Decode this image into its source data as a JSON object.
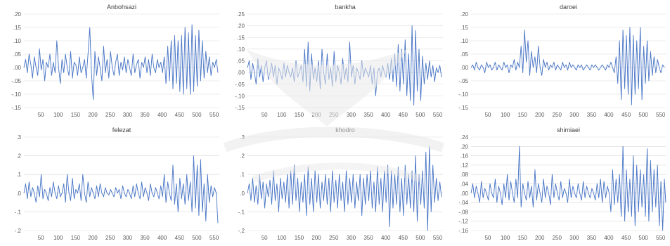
{
  "colors": {
    "series": "#4472C4",
    "grid": "#d9d9d9",
    "tick_text": "#595959",
    "title_text": "#404040"
  },
  "chart_data": [
    {
      "type": "line",
      "title": "Anbohsazi",
      "xlabel": "",
      "ylabel": "",
      "xlim": [
        1,
        565
      ],
      "ylim": [
        -0.15,
        0.2
      ],
      "xticks": [
        50,
        100,
        150,
        200,
        250,
        300,
        350,
        400,
        450,
        500,
        550
      ],
      "xtick_labels": [
        "50",
        "100",
        "150",
        "200",
        "250",
        "300",
        "350",
        "400",
        "450",
        "500",
        "550"
      ],
      "yticks": [
        -0.15,
        -0.1,
        -0.05,
        0,
        0.05,
        0.1,
        0.15,
        0.2
      ],
      "ytick_labels": [
        "-.15",
        "-.10",
        "-.05",
        ".00",
        ".05",
        ".10",
        ".15",
        ".20"
      ],
      "grid": "horizontal",
      "series": [
        {
          "x_start": 1,
          "x_step": 5,
          "values": [
            0.0,
            0.03,
            -0.02,
            0.05,
            0.01,
            -0.04,
            0.04,
            0.0,
            -0.03,
            0.07,
            -0.01,
            0.03,
            -0.05,
            0.02,
            0.0,
            0.05,
            -0.03,
            0.02,
            -0.02,
            0.1,
            0.0,
            -0.06,
            0.03,
            -0.02,
            0.05,
            0.0,
            -0.03,
            0.06,
            -0.04,
            0.02,
            0.01,
            -0.03,
            0.04,
            -0.02,
            0.0,
            0.03,
            -0.04,
            0.05,
            0.15,
            -0.02,
            -0.12,
            0.06,
            -0.03,
            0.04,
            0.0,
            -0.05,
            0.08,
            -0.02,
            0.03,
            -0.04,
            0.06,
            0.0,
            -0.03,
            0.02,
            0.05,
            -0.03,
            0.02,
            -0.01,
            0.04,
            -0.02,
            0.03,
            0.0,
            -0.03,
            0.05,
            -0.02,
            0.01,
            0.03,
            -0.04,
            0.02,
            0.0,
            0.04,
            -0.02,
            0.03,
            -0.03,
            0.05,
            0.0,
            -0.02,
            0.03,
            0.0,
            0.02,
            -0.02,
            0.04,
            -0.06,
            0.08,
            -0.05,
            0.1,
            -0.08,
            0.12,
            -0.06,
            0.1,
            -0.09,
            0.12,
            -0.1,
            0.15,
            -0.08,
            0.13,
            -0.1,
            0.16,
            -0.09,
            0.12,
            -0.07,
            0.14,
            -0.05,
            0.1,
            -0.04,
            0.06,
            -0.02,
            0.04,
            -0.03,
            0.02,
            0.0,
            0.03,
            -0.02
          ]
        }
      ]
    },
    {
      "type": "line",
      "title": "bankha",
      "xlabel": "",
      "ylabel": "",
      "xlim": [
        1,
        565
      ],
      "ylim": [
        -0.15,
        0.25
      ],
      "xticks": [
        50,
        100,
        150,
        200,
        250,
        300,
        350,
        400,
        450,
        500,
        550
      ],
      "xtick_labels": [
        "50",
        "100",
        "150",
        "200",
        "250",
        "300",
        "350",
        "400",
        "450",
        "500",
        "550"
      ],
      "yticks": [
        -0.15,
        -0.1,
        -0.05,
        0,
        0.05,
        0.1,
        0.15,
        0.2,
        0.25
      ],
      "ytick_labels": [
        "-.15",
        "-.10",
        "-.05",
        ".00",
        ".05",
        ".10",
        ".15",
        ".20",
        ".25"
      ],
      "grid": "horizontal",
      "series": [
        {
          "x_start": 1,
          "x_step": 5,
          "values": [
            0.02,
            0.05,
            -0.03,
            0.04,
            0.0,
            -0.05,
            0.06,
            -0.02,
            0.03,
            -0.04,
            0.02,
            0.05,
            -0.03,
            0.0,
            0.04,
            -0.02,
            0.03,
            -0.05,
            0.02,
            0.0,
            -0.03,
            0.04,
            -0.02,
            0.03,
            0.0,
            -0.02,
            0.02,
            -0.04,
            0.05,
            -0.02,
            0.0,
            0.03,
            -0.04,
            0.1,
            -0.06,
            0.13,
            -0.08,
            0.08,
            -0.03,
            0.02,
            -0.04,
            0.05,
            -0.07,
            0.1,
            0.0,
            -0.05,
            0.08,
            -0.03,
            0.02,
            -0.06,
            0.09,
            -0.04,
            0.03,
            0.0,
            -0.05,
            0.06,
            -0.03,
            0.02,
            -0.04,
            0.13,
            -0.02,
            0.03,
            -0.05,
            0.02,
            0.0,
            -0.03,
            0.05,
            -0.02,
            0.02,
            0.0,
            -0.02,
            0.03,
            -0.05,
            0.02,
            -0.1,
            0.0,
            0.02,
            -0.02,
            0.03,
            0.0,
            -0.02,
            0.04,
            -0.03,
            0.06,
            -0.04,
            0.08,
            -0.06,
            0.12,
            -0.08,
            0.1,
            -0.05,
            0.14,
            -0.1,
            0.08,
            -0.12,
            0.2,
            -0.14,
            0.18,
            -0.08,
            0.1,
            -0.12,
            0.07,
            -0.05,
            0.04,
            -0.03,
            0.05,
            -0.02,
            0.03,
            -0.04,
            0.02,
            0.0,
            0.03,
            -0.02
          ]
        }
      ]
    },
    {
      "type": "line",
      "title": "daroei",
      "xlabel": "",
      "ylabel": "",
      "xlim": [
        1,
        565
      ],
      "ylim": [
        -0.15,
        0.2
      ],
      "xticks": [
        50,
        100,
        150,
        200,
        250,
        300,
        350,
        400,
        450,
        500,
        550
      ],
      "xtick_labels": [
        "50",
        "100",
        "150",
        "200",
        "250",
        "300",
        "350",
        "400",
        "450",
        "500",
        "550"
      ],
      "yticks": [
        -0.15,
        -0.1,
        -0.05,
        0,
        0.05,
        0.1,
        0.15,
        0.2
      ],
      "ytick_labels": [
        "-.15",
        "-.10",
        "-.05",
        ".00",
        ".05",
        ".10",
        ".15",
        ".20"
      ],
      "grid": "horizontal",
      "series": [
        {
          "x_start": 1,
          "x_step": 5,
          "values": [
            0.0,
            0.01,
            -0.01,
            0.02,
            0.0,
            -0.01,
            0.01,
            0.0,
            -0.02,
            0.02,
            0.0,
            0.01,
            -0.01,
            0.0,
            0.02,
            -0.01,
            0.01,
            0.0,
            -0.01,
            0.02,
            0.0,
            0.01,
            -0.02,
            0.01,
            0.0,
            0.03,
            -0.01,
            0.02,
            0.0,
            0.08,
            -0.02,
            0.14,
            0.02,
            0.1,
            -0.03,
            0.06,
            0.0,
            0.04,
            -0.02,
            0.08,
            0.0,
            -0.03,
            0.03,
            0.0,
            0.02,
            -0.01,
            0.01,
            0.0,
            0.02,
            -0.01,
            0.01,
            0.0,
            -0.01,
            0.02,
            0.0,
            0.01,
            -0.01,
            0.02,
            0.0,
            0.01,
            0.0,
            -0.01,
            0.01,
            0.0,
            0.01,
            -0.01,
            0.0,
            0.01,
            0.0,
            -0.01,
            0.01,
            0.0,
            0.01,
            0.0,
            -0.01,
            0.0,
            0.01,
            0.0,
            -0.01,
            0.01,
            0.0,
            0.02,
            0.0,
            -0.02,
            0.04,
            -0.06,
            0.1,
            -0.12,
            0.14,
            -0.08,
            0.12,
            -0.1,
            0.15,
            -0.14,
            0.12,
            -0.1,
            0.1,
            -0.08,
            0.15,
            -0.12,
            0.08,
            -0.06,
            0.1,
            -0.05,
            0.06,
            -0.03,
            0.04,
            -0.02,
            0.03,
            0.0,
            -0.02,
            0.01,
            0.0
          ]
        }
      ]
    },
    {
      "type": "line",
      "title": "felezat",
      "xlabel": "",
      "ylabel": "",
      "xlim": [
        1,
        565
      ],
      "ylim": [
        -0.2,
        0.3
      ],
      "xticks": [
        50,
        100,
        150,
        200,
        250,
        300,
        350,
        400,
        450,
        500,
        550
      ],
      "xtick_labels": [
        "50",
        "100",
        "150",
        "200",
        "250",
        "300",
        "350",
        "400",
        "450",
        "500",
        "550"
      ],
      "yticks": [
        -0.2,
        -0.1,
        0,
        0.1,
        0.2,
        0.3
      ],
      "ytick_labels": [
        "-.2",
        "-.1",
        ".0",
        ".1",
        ".2",
        ".3"
      ],
      "grid": "horizontal",
      "series": [
        {
          "x_start": 1,
          "x_step": 5,
          "values": [
            0.0,
            0.05,
            -0.03,
            0.06,
            -0.02,
            0.03,
            0.0,
            -0.05,
            0.04,
            -0.02,
            0.1,
            -0.03,
            0.02,
            0.0,
            -0.04,
            0.03,
            -0.02,
            0.06,
            0.0,
            -0.03,
            0.04,
            -0.02,
            0.0,
            0.05,
            -0.05,
            0.1,
            0.0,
            -0.04,
            0.08,
            -0.03,
            0.02,
            0.0,
            0.05,
            -0.04,
            0.1,
            0.0,
            -0.05,
            0.06,
            -0.02,
            0.03,
            0.0,
            -0.03,
            0.04,
            -0.02,
            0.05,
            0.0,
            -0.02,
            0.03,
            0.0,
            -0.01,
            0.02,
            0.0,
            -0.02,
            0.03,
            0.0,
            0.02,
            -0.03,
            0.04,
            0.0,
            -0.02,
            0.02,
            0.0,
            -0.03,
            0.04,
            -0.02,
            0.05,
            0.0,
            -0.03,
            0.06,
            -0.02,
            0.03,
            0.0,
            -0.04,
            0.05,
            0.0,
            -0.02,
            0.03,
            0.0,
            -0.03,
            0.04,
            -0.02,
            0.1,
            -0.05,
            0.06,
            0.0,
            -0.04,
            0.15,
            -0.06,
            0.05,
            -0.1,
            0.08,
            -0.03,
            0.05,
            -0.06,
            0.1,
            -0.04,
            0.06,
            -0.1,
            0.2,
            -0.08,
            0.15,
            -0.12,
            0.18,
            -0.1,
            0.05,
            -0.15,
            0.1,
            -0.05,
            0.04,
            -0.02,
            0.03,
            0.0,
            -0.16
          ]
        }
      ]
    },
    {
      "type": "line",
      "title": "khodro",
      "xlabel": "",
      "ylabel": "",
      "xlim": [
        1,
        565
      ],
      "ylim": [
        -0.2,
        0.3
      ],
      "xticks": [
        50,
        100,
        150,
        200,
        250,
        300,
        350,
        400,
        450,
        500,
        550
      ],
      "xtick_labels": [
        "50",
        "100",
        "150",
        "200",
        "250",
        "300",
        "350",
        "400",
        "450",
        "500",
        "550"
      ],
      "yticks": [
        -0.2,
        -0.1,
        0,
        0.1,
        0.2,
        0.3
      ],
      "ytick_labels": [
        "-.2",
        "-.1",
        ".0",
        ".1",
        ".2",
        ".3"
      ],
      "grid": "horizontal",
      "series": [
        {
          "x_start": 1,
          "x_step": 5,
          "values": [
            0.0,
            0.05,
            -0.04,
            0.08,
            -0.05,
            0.04,
            -0.06,
            0.1,
            -0.03,
            0.06,
            -0.08,
            0.05,
            -0.02,
            0.07,
            -0.06,
            0.12,
            -0.04,
            0.05,
            -0.1,
            0.08,
            -0.03,
            0.06,
            -0.05,
            0.1,
            -0.08,
            0.12,
            -0.06,
            0.15,
            -0.04,
            0.08,
            -0.1,
            0.06,
            -0.05,
            0.1,
            -0.12,
            0.14,
            -0.06,
            0.08,
            -0.1,
            0.12,
            -0.05,
            0.1,
            -0.08,
            0.06,
            -0.04,
            0.1,
            -0.06,
            0.08,
            -0.1,
            0.12,
            -0.05,
            0.07,
            -0.08,
            0.1,
            -0.04,
            0.06,
            -0.1,
            0.12,
            -0.06,
            0.08,
            -0.05,
            0.1,
            -0.08,
            0.06,
            -0.04,
            0.1,
            -0.12,
            0.08,
            -0.06,
            0.1,
            -0.04,
            0.12,
            -0.08,
            0.06,
            -0.1,
            0.14,
            -0.06,
            0.08,
            -0.1,
            0.12,
            -0.05,
            0.15,
            -0.18,
            0.12,
            -0.08,
            0.1,
            -0.06,
            0.14,
            -0.1,
            0.08,
            -0.12,
            0.15,
            -0.06,
            0.1,
            -0.08,
            0.12,
            -0.1,
            0.2,
            -0.15,
            0.1,
            -0.06,
            0.12,
            -0.08,
            0.22,
            -0.2,
            0.25,
            -0.1,
            0.15,
            -0.05,
            0.08,
            -0.04,
            0.06,
            -0.02
          ]
        }
      ]
    },
    {
      "type": "line",
      "title": "shimiaei",
      "xlabel": "",
      "ylabel": "",
      "xlim": [
        1,
        565
      ],
      "ylim": [
        -0.16,
        0.24
      ],
      "xticks": [
        50,
        100,
        150,
        200,
        250,
        300,
        350,
        400,
        450,
        500,
        550
      ],
      "xtick_labels": [
        "50",
        "100",
        "150",
        "200",
        "250",
        "300",
        "350",
        "400",
        "450",
        "500",
        "550"
      ],
      "yticks": [
        -0.16,
        -0.12,
        -0.08,
        -0.04,
        0,
        0.04,
        0.08,
        0.12,
        0.16,
        0.2,
        0.24
      ],
      "ytick_labels": [
        "-.16",
        "-.12",
        "-.08",
        "-.04",
        ".00",
        ".04",
        ".08",
        ".12",
        ".16",
        ".20",
        ".24"
      ],
      "grid": "horizontal",
      "series": [
        {
          "x_start": 1,
          "x_step": 5,
          "values": [
            0.0,
            0.04,
            -0.02,
            0.03,
            0.0,
            -0.04,
            0.05,
            -0.02,
            0.02,
            0.0,
            -0.03,
            0.04,
            0.0,
            -0.02,
            0.06,
            -0.04,
            0.03,
            0.0,
            -0.05,
            0.04,
            -0.02,
            0.08,
            -0.03,
            0.05,
            0.0,
            -0.04,
            0.06,
            -0.02,
            0.2,
            -0.06,
            0.04,
            0.0,
            -0.03,
            0.05,
            -0.02,
            0.03,
            -0.06,
            0.1,
            -0.03,
            0.04,
            0.0,
            -0.04,
            0.06,
            -0.02,
            0.03,
            0.0,
            -0.05,
            0.08,
            -0.02,
            0.04,
            0.0,
            -0.03,
            0.05,
            -0.02,
            0.02,
            0.0,
            -0.04,
            0.06,
            -0.02,
            0.03,
            0.0,
            -0.02,
            0.04,
            0.0,
            -0.03,
            0.05,
            -0.02,
            0.03,
            0.0,
            -0.02,
            0.02,
            0.0,
            -0.03,
            0.04,
            -0.02,
            0.06,
            -0.04,
            0.05,
            -0.02,
            0.03,
            0.0,
            -0.08,
            0.1,
            -0.05,
            0.06,
            -0.04,
            0.08,
            -0.1,
            0.2,
            -0.12,
            0.1,
            -0.08,
            0.06,
            -0.1,
            0.16,
            -0.14,
            0.12,
            -0.08,
            0.1,
            -0.06,
            0.08,
            -0.1,
            0.19,
            -0.12,
            0.14,
            -0.08,
            0.1,
            -0.06,
            0.12,
            -0.14,
            0.05,
            -0.16,
            0.06,
            -0.04
          ]
        }
      ]
    }
  ]
}
